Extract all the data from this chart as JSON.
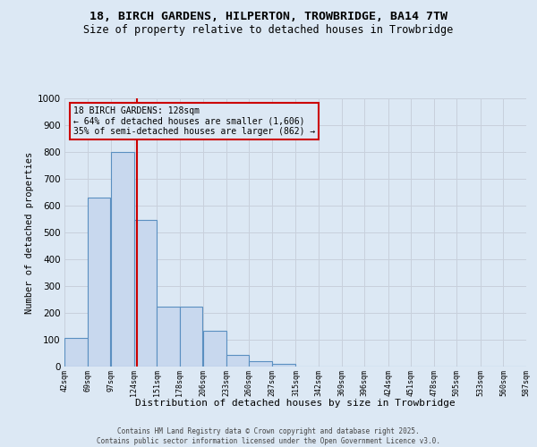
{
  "title_line1": "18, BIRCH GARDENS, HILPERTON, TROWBRIDGE, BA14 7TW",
  "title_line2": "Size of property relative to detached houses in Trowbridge",
  "xlabel": "Distribution of detached houses by size in Trowbridge",
  "ylabel": "Number of detached properties",
  "bar_left_edges": [
    42,
    69,
    97,
    124,
    151,
    178,
    206,
    233,
    260,
    287,
    315,
    342,
    369,
    396,
    424,
    451,
    478,
    505,
    533,
    560
  ],
  "bar_heights": [
    108,
    630,
    800,
    547,
    222,
    222,
    135,
    42,
    20,
    10,
    0,
    0,
    0,
    0,
    0,
    0,
    0,
    0,
    0,
    0
  ],
  "bin_width": 27,
  "bar_color": "#c8d8ee",
  "bar_edge_color": "#5a8fc0",
  "vline_x": 128,
  "vline_color": "#cc0000",
  "annotation_box_text": "18 BIRCH GARDENS: 128sqm\n← 64% of detached houses are smaller (1,606)\n35% of semi-detached houses are larger (862) →",
  "ylim": [
    0,
    1000
  ],
  "yticks": [
    0,
    100,
    200,
    300,
    400,
    500,
    600,
    700,
    800,
    900,
    1000
  ],
  "xtick_labels": [
    "42sqm",
    "69sqm",
    "97sqm",
    "124sqm",
    "151sqm",
    "178sqm",
    "206sqm",
    "233sqm",
    "260sqm",
    "287sqm",
    "315sqm",
    "342sqm",
    "369sqm",
    "396sqm",
    "424sqm",
    "451sqm",
    "478sqm",
    "505sqm",
    "533sqm",
    "560sqm",
    "587sqm"
  ],
  "xtick_positions": [
    42,
    69,
    97,
    124,
    151,
    178,
    206,
    233,
    260,
    287,
    315,
    342,
    369,
    396,
    424,
    451,
    478,
    505,
    533,
    560,
    587
  ],
  "grid_color": "#c8d0dc",
  "bg_color": "#dce8f4",
  "footer_text": "Contains HM Land Registry data © Crown copyright and database right 2025.\nContains public sector information licensed under the Open Government Licence v3.0.",
  "title_fontsize": 9.5,
  "subtitle_fontsize": 8.5,
  "xlim_left": 42,
  "xlim_right": 587
}
